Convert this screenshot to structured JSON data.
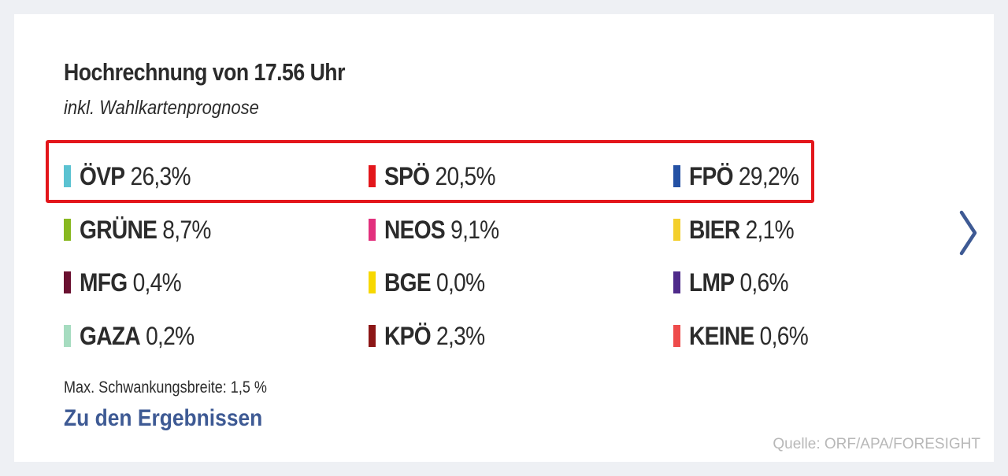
{
  "header": {
    "title": "Hochrechnung von 17.56 Uhr",
    "subtitle": "inkl. Wahlkartenprognose"
  },
  "highlight_color": "#e3161b",
  "parties": [
    {
      "name": "ÖVP",
      "percent": "26,3%",
      "color": "#5bc2d1"
    },
    {
      "name": "SPÖ",
      "percent": "20,5%",
      "color": "#e3161b"
    },
    {
      "name": "FPÖ",
      "percent": "29,2%",
      "color": "#2451a4"
    },
    {
      "name": "GRÜNE",
      "percent": "8,7%",
      "color": "#88b820"
    },
    {
      "name": "NEOS",
      "percent": "9,1%",
      "color": "#e2307d"
    },
    {
      "name": "BIER",
      "percent": "2,1%",
      "color": "#f3cf2c"
    },
    {
      "name": "MFG",
      "percent": "0,4%",
      "color": "#6a1030"
    },
    {
      "name": "BGE",
      "percent": "0,0%",
      "color": "#f7d800"
    },
    {
      "name": "LMP",
      "percent": "0,6%",
      "color": "#4e2a8a"
    },
    {
      "name": "GAZA",
      "percent": "0,2%",
      "color": "#a6dcc0"
    },
    {
      "name": "KPÖ",
      "percent": "2,3%",
      "color": "#8c1616"
    },
    {
      "name": "KEINE",
      "percent": "0,6%",
      "color": "#ee4b4b"
    }
  ],
  "footer": {
    "note": "Max. Schwankungsbreite: 1,5 %",
    "link_label": "Zu den Ergebnissen",
    "source": "Quelle: ORF/APA/FORESIGHT"
  },
  "navigation": {
    "next_icon": "chevron-right-icon",
    "arrow_color": "#3e5a94"
  }
}
